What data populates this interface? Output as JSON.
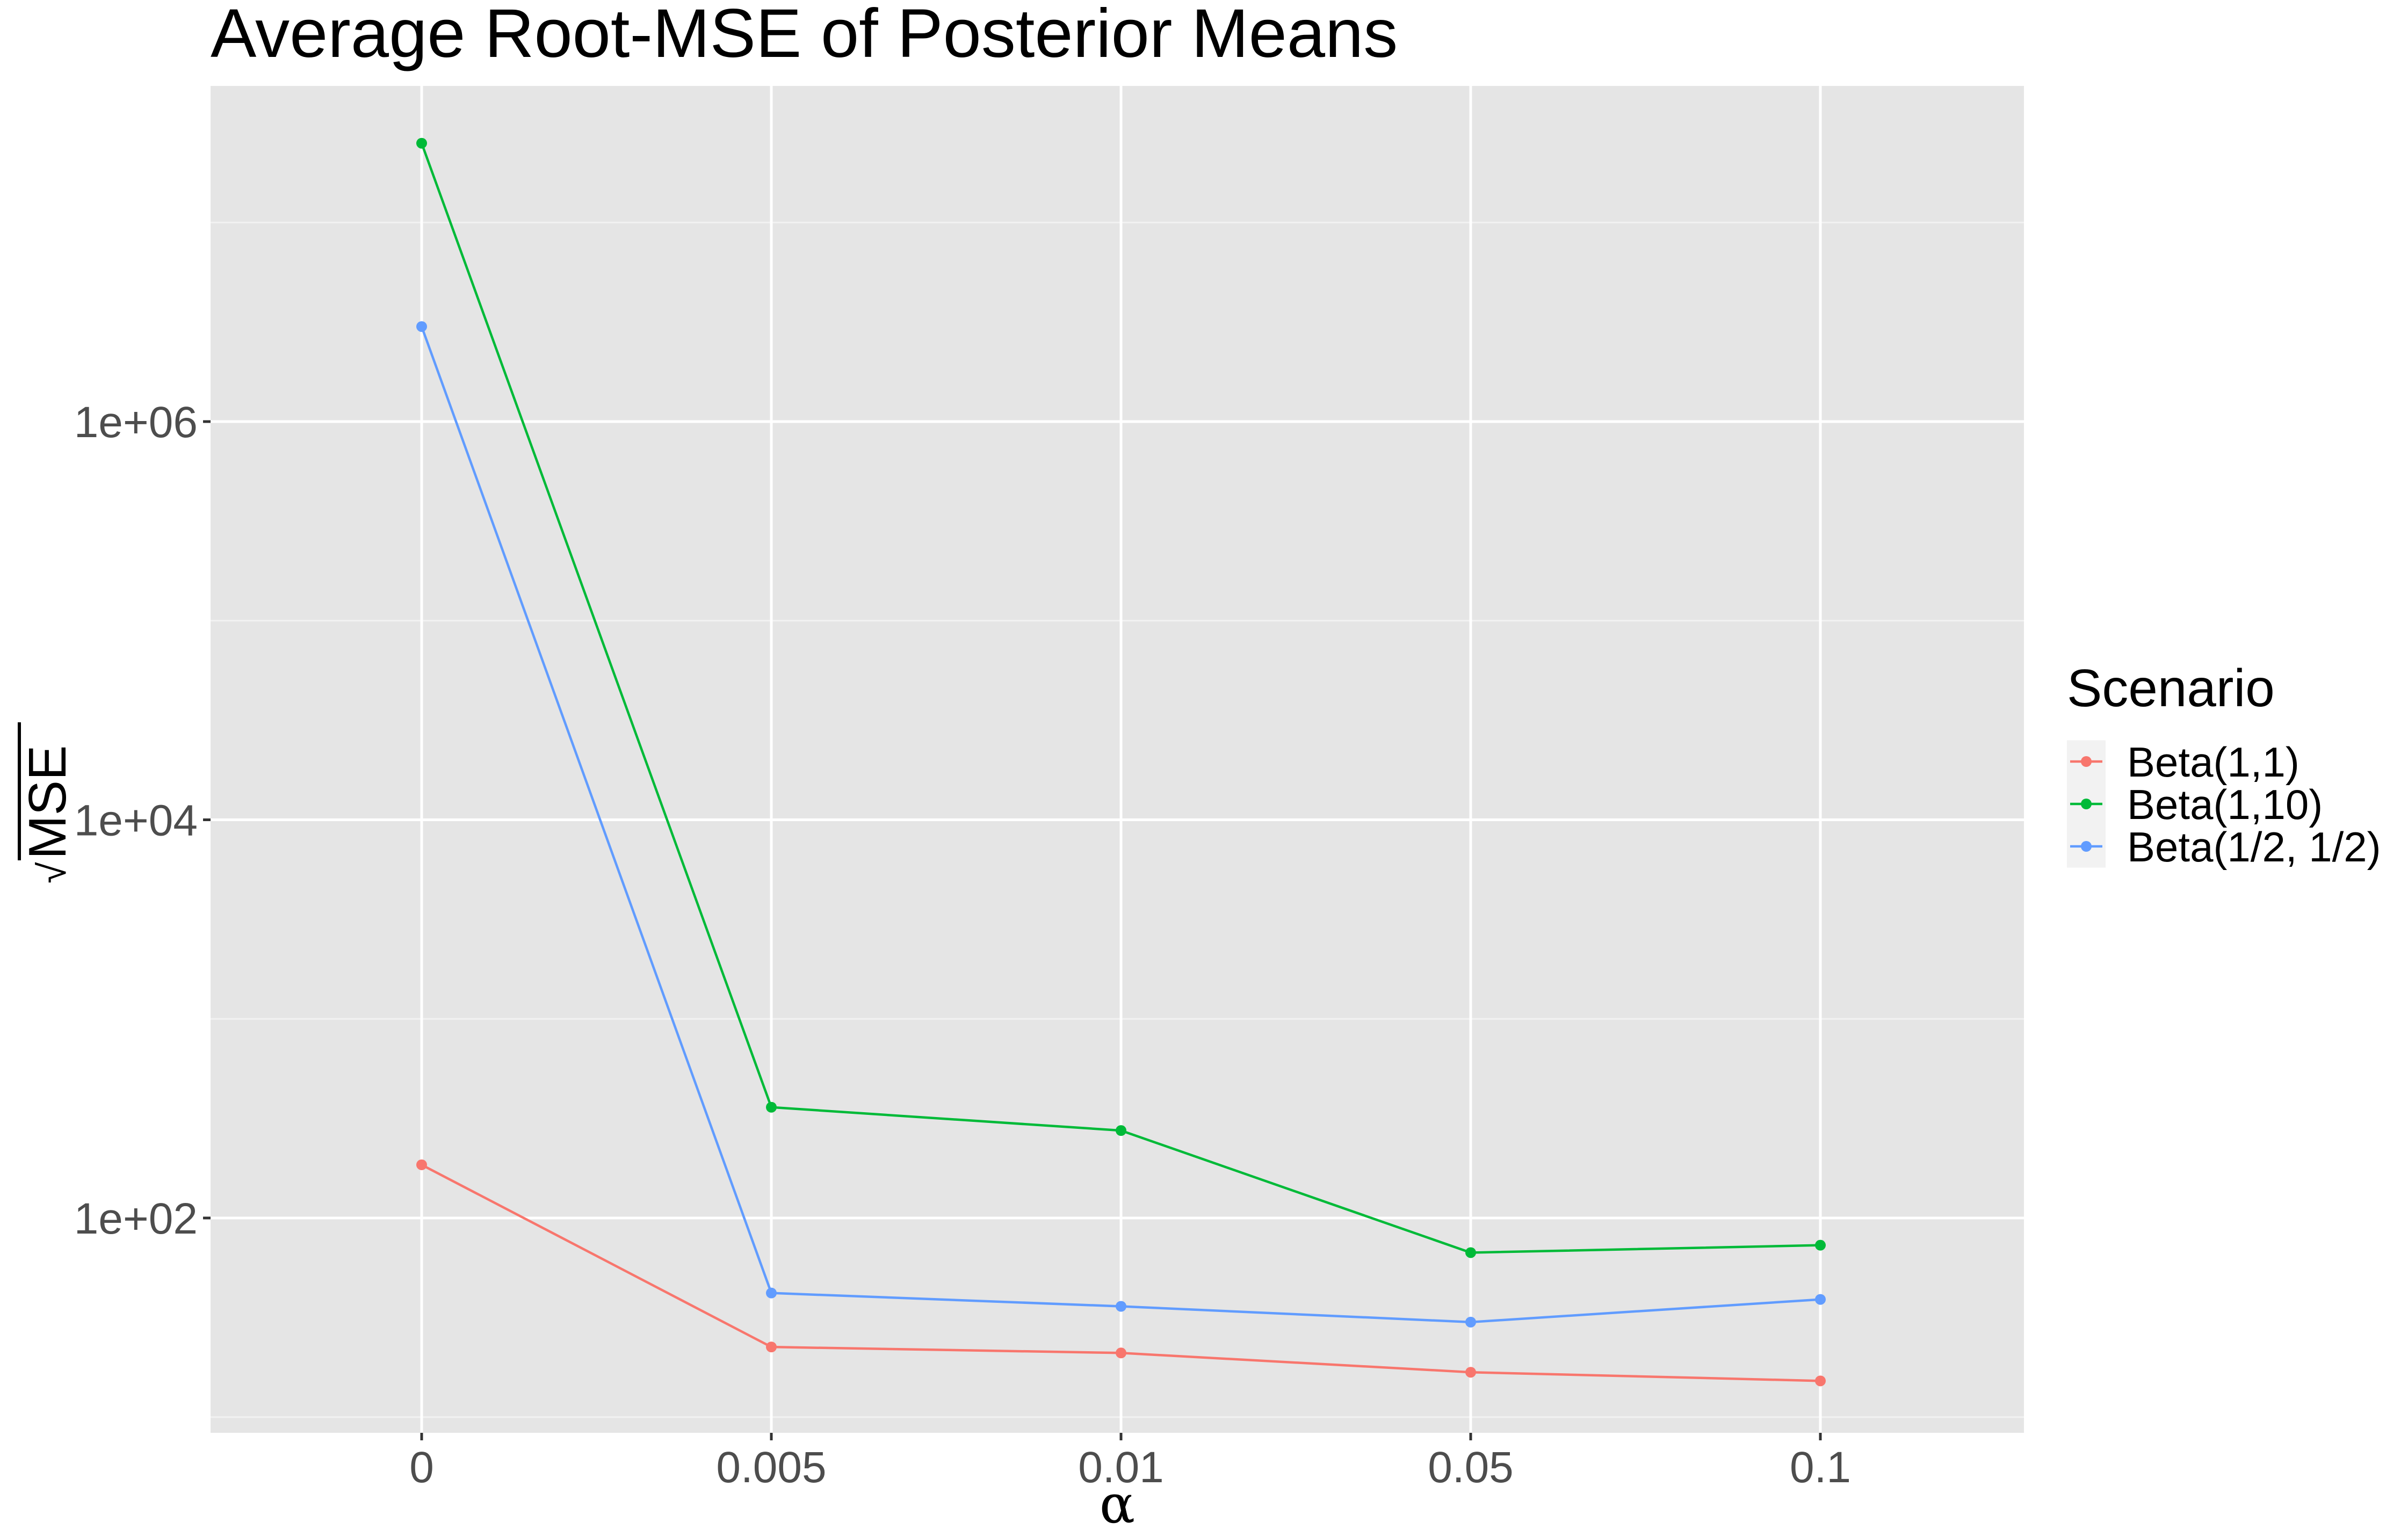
{
  "chart_data": {
    "type": "line",
    "title": "Average Root-MSE of Posterior Means",
    "xlabel": "α",
    "ylabel": "MSE",
    "ylabel_prefix": "√",
    "y_scale": "log10",
    "ylim": [
      8,
      30000000
    ],
    "grid": true,
    "categories": [
      "0",
      "0.005",
      "0.01",
      "0.05",
      "0.1"
    ],
    "yticks": [
      {
        "value": 100,
        "label": "1e+02"
      },
      {
        "value": 10000,
        "label": "1e+04"
      },
      {
        "value": 1000000,
        "label": "1e+06"
      }
    ],
    "y_minor_gridlines": [
      10,
      1000,
      100000,
      10000000
    ],
    "legend": {
      "title": "Scenario",
      "position": "right"
    },
    "series": [
      {
        "name": "Beta(1,1)",
        "color": "#F8766D",
        "values": [
          185,
          22.5,
          21,
          16.8,
          15.2
        ]
      },
      {
        "name": "Beta(1,10)",
        "color": "#00BA38",
        "values": [
          25000000,
          360,
          275,
          67,
          73
        ]
      },
      {
        "name": "Beta(1/2, 1/2)",
        "color": "#619CFF",
        "values": [
          3000000,
          42,
          36,
          30,
          39
        ]
      }
    ]
  }
}
